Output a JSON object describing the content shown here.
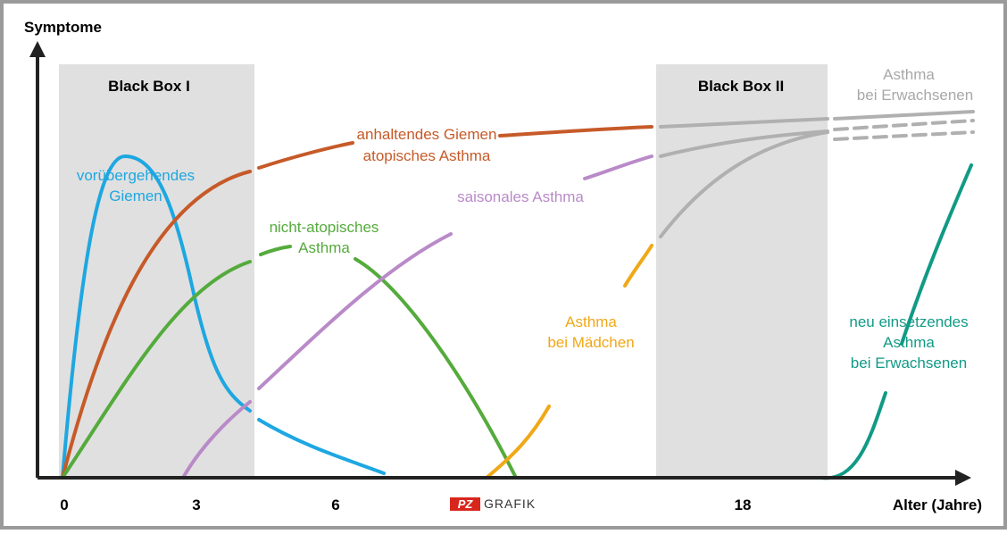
{
  "axes": {
    "y_label": "Symptome",
    "x_label": "Alter (Jahre)",
    "x_ticks": [
      "0",
      "3",
      "6",
      "18"
    ]
  },
  "boxes": [
    "Black Box I",
    "Black Box II"
  ],
  "curves": {
    "transient_wheeze": [
      "vorübergehendes",
      "Giemen"
    ],
    "persistent_wheeze": [
      "anhaltendes Giemen",
      "atopisches Asthma"
    ],
    "non_atopic": [
      "nicht-atopisches",
      "Asthma"
    ],
    "seasonal": [
      "saisonales Asthma"
    ],
    "girls": [
      "Asthma",
      "bei Mädchen"
    ],
    "adults": [
      "Asthma",
      "bei Erwachsenen"
    ],
    "new_onset": [
      "neu einsetzendes",
      "Asthma",
      "bei Erwachsenen"
    ]
  },
  "logo": {
    "mark": "PZ",
    "text": "GRAFIK"
  }
}
